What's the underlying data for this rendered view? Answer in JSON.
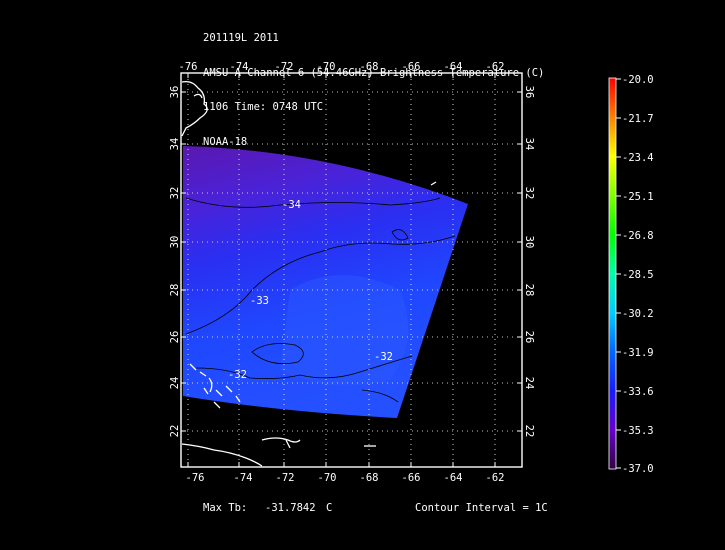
{
  "header": {
    "line1": "201119L 2011",
    "line2": "AMSU-A Channel 6 (54.46GHz) Brightness Temperature (C)",
    "line3": "1106 Time: 0748 UTC",
    "line4": "NOAA-18"
  },
  "footer": {
    "max_label": "Max Tb:",
    "max_value": "-31.7842",
    "max_unit": "C",
    "contour_interval": "Contour Interval = 1C"
  },
  "axes": {
    "lon_ticks": [
      "-76",
      "-74",
      "-72",
      "-70",
      "-68",
      "-66",
      "-64",
      "-62"
    ],
    "lat_ticks": [
      "22",
      "24",
      "26",
      "28",
      "30",
      "32",
      "34",
      "36"
    ]
  },
  "contours": [
    "-34",
    "-33",
    "-32",
    "-32"
  ],
  "colorbar": {
    "labels": [
      "-20.0",
      "-21.7",
      "-23.4",
      "-25.1",
      "-26.8",
      "-28.5",
      "-30.2",
      "-31.9",
      "-33.6",
      "-35.3",
      "-37.0"
    ],
    "colors": [
      "#ff0000",
      "#ff8000",
      "#ffff00",
      "#80ff00",
      "#00ff00",
      "#00ffaa",
      "#00ccff",
      "#0066ff",
      "#1a1aff",
      "#6600cc",
      "#330044"
    ]
  },
  "chart_data": {
    "type": "heatmap",
    "lon_range": [
      -77,
      -61
    ],
    "lat_range": [
      20.7,
      37
    ],
    "value_range": [
      -37.0,
      -20.0
    ],
    "max_tb": -31.7842,
    "contour_interval": 1
  }
}
